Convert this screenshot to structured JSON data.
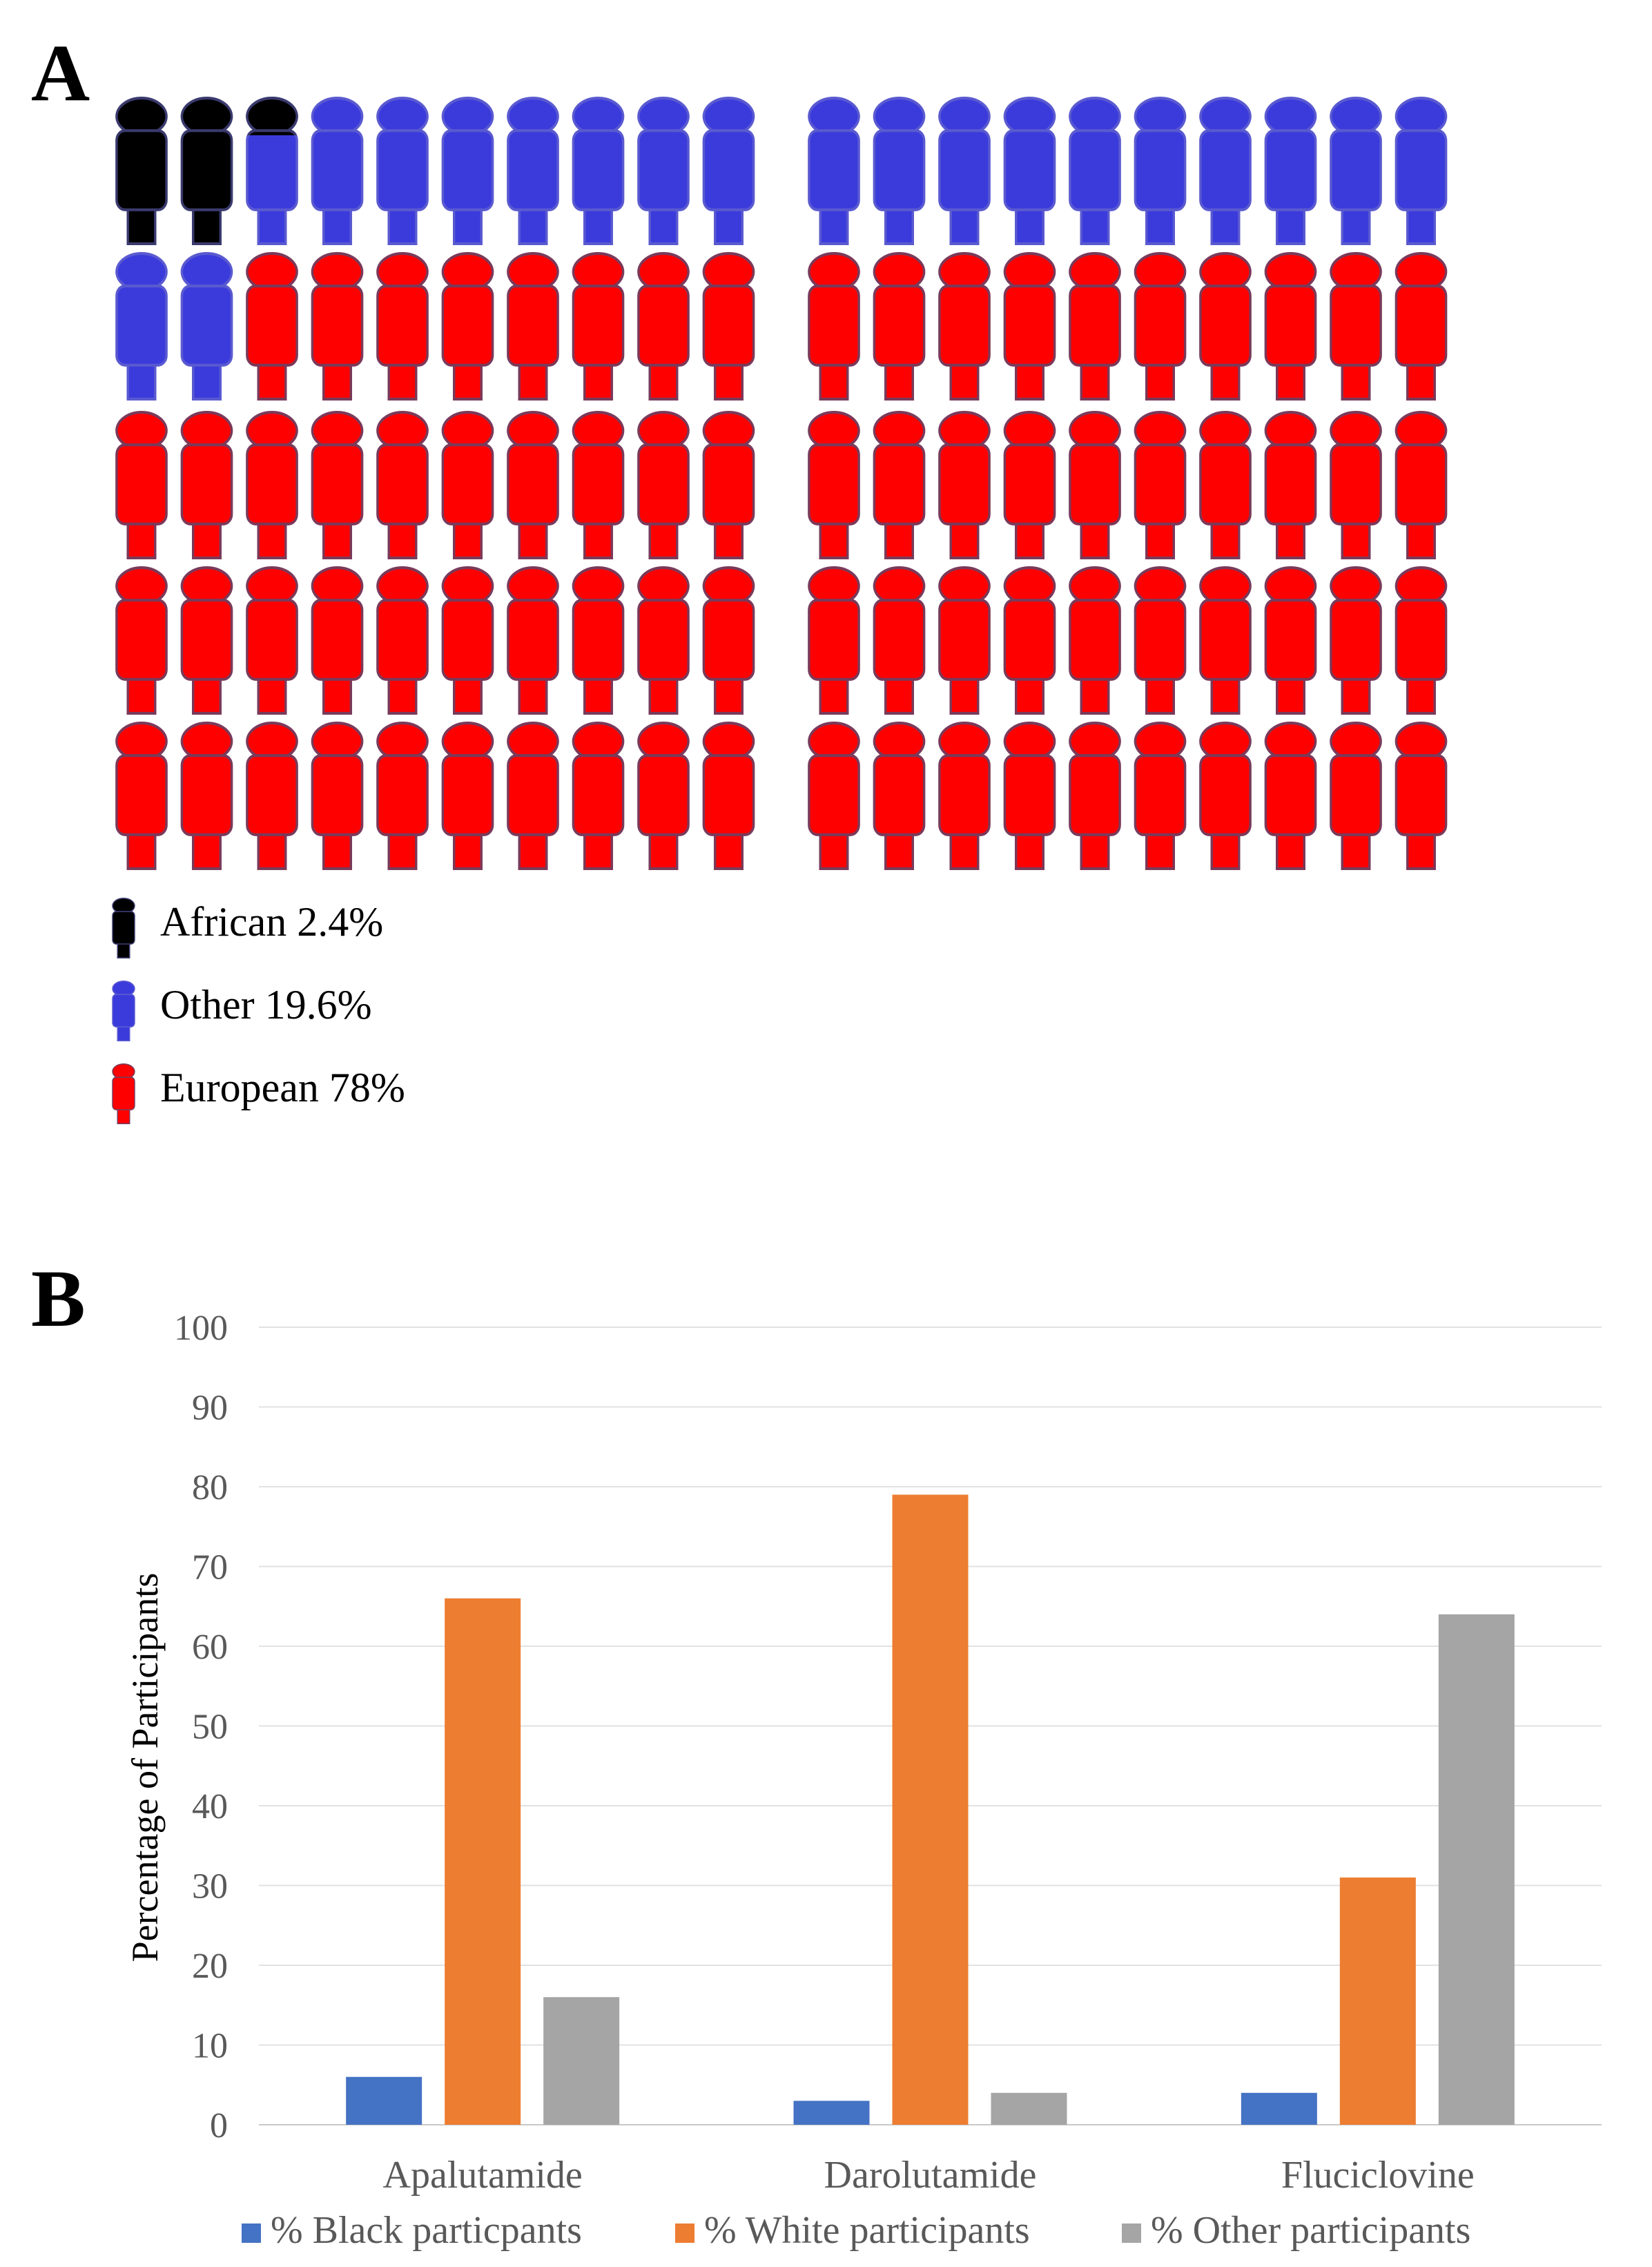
{
  "panel_a": {
    "label": "A",
    "legend": [
      {
        "label": "African 2.4%",
        "color": "#000000",
        "outline": "#3a3a6e"
      },
      {
        "label": "Other 19.6%",
        "color": "#3b3bdc",
        "outline": "#5a5ad0"
      },
      {
        "label": "European 78%",
        "color": "#ff0000",
        "outline": "#7a3a5a"
      }
    ]
  },
  "panel_b": {
    "label": "B"
  },
  "chart_data": [
    {
      "type": "icon-array",
      "total_icons": 100,
      "series": [
        {
          "name": "African",
          "percent": 2.4,
          "color": "#000000"
        },
        {
          "name": "Other",
          "percent": 19.6,
          "color": "#3b3bdc"
        },
        {
          "name": "European",
          "percent": 78,
          "color": "#ff0000"
        }
      ]
    },
    {
      "type": "bar",
      "title": "",
      "xlabel": "",
      "ylabel": "Percentage of Participants",
      "ylim": [
        0,
        100
      ],
      "yticks": [
        0,
        10,
        20,
        30,
        40,
        50,
        60,
        70,
        80,
        90,
        100
      ],
      "grid": true,
      "legend_position": "bottom",
      "categories": [
        "Apalutamide",
        "Darolutamide",
        "Fluciclovine"
      ],
      "series": [
        {
          "name": "% Black particpants",
          "color": "#4472c4",
          "values": [
            6,
            3,
            4
          ]
        },
        {
          "name": "% White participants",
          "color": "#ed7d31",
          "values": [
            66,
            79,
            31
          ]
        },
        {
          "name": "% Other participants",
          "color": "#a5a5a5",
          "values": [
            16,
            4,
            64
          ]
        }
      ]
    }
  ]
}
